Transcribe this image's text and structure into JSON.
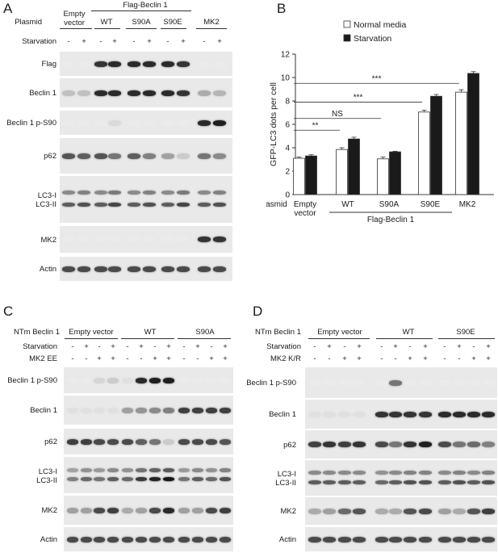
{
  "figure": {
    "panel_letters": [
      "A",
      "B",
      "C",
      "D"
    ]
  },
  "panelA": {
    "header_group": "Flag-Beclin 1",
    "col_groups": [
      "Empty\nvector",
      "WT",
      "S90A",
      "S90E",
      "MK2"
    ],
    "row_plasmid": "Plasmid",
    "row_starvation": "Starvation",
    "starvation": [
      "-",
      "+",
      "-",
      "+",
      "-",
      "+",
      "-",
      "+",
      "-",
      "+"
    ],
    "blots": [
      {
        "label": "Flag",
        "lanes": [
          0,
          0,
          0.85,
          0.9,
          0.9,
          0.9,
          0.9,
          0.85,
          0,
          0
        ]
      },
      {
        "label": "Beclin 1",
        "lanes": [
          0.2,
          0.2,
          0.9,
          0.9,
          0.9,
          0.9,
          0.9,
          0.85,
          0.3,
          0.25
        ]
      },
      {
        "label": "Beclin 1 p-S90",
        "lanes": [
          0,
          0,
          0,
          0.08,
          0,
          0,
          0,
          0,
          0.9,
          0.95
        ]
      },
      {
        "label": "p62",
        "lanes": [
          0.7,
          0.65,
          0.7,
          0.55,
          0.65,
          0.5,
          0.35,
          0.15,
          0.55,
          0.45
        ]
      },
      {
        "label": "LC3-I\nLC3-II",
        "lanes": [
          0.6,
          0.65,
          0.6,
          0.7,
          0.6,
          0.65,
          0.6,
          0.7,
          0.6,
          0.65
        ]
      },
      {
        "label": "MK2",
        "lanes": [
          0,
          0,
          0,
          0,
          0,
          0,
          0,
          0,
          0.85,
          0.85
        ]
      },
      {
        "label": "Actin",
        "lanes": [
          0.75,
          0.75,
          0.75,
          0.75,
          0.75,
          0.75,
          0.75,
          0.75,
          0.75,
          0.75
        ]
      }
    ]
  },
  "panelC": {
    "row_group": "NTm Beclin 1",
    "col_groups": [
      "Empty vector",
      "WT",
      "S90A"
    ],
    "row_starvation": "Starvation",
    "row_treatment": "MK2 EE",
    "starvation": [
      "-",
      "+",
      "-",
      "+",
      "-",
      "+",
      "-",
      "+",
      "-",
      "+",
      "-",
      "+"
    ],
    "treatment": [
      "-",
      "-",
      "+",
      "+",
      "-",
      "-",
      "+",
      "+",
      "-",
      "-",
      "+",
      "+"
    ],
    "blots": [
      {
        "label": "Beclin 1 p-S90",
        "lanes": [
          0,
          0,
          0.1,
          0.15,
          0.05,
          0.9,
          0.95,
          0.95,
          0,
          0,
          0,
          0
        ]
      },
      {
        "label": "Beclin 1",
        "lanes": [
          0.05,
          0.05,
          0.05,
          0.05,
          0.35,
          0.4,
          0.45,
          0.5,
          0.8,
          0.8,
          0.8,
          0.8
        ]
      },
      {
        "label": "p62",
        "lanes": [
          0.8,
          0.8,
          0.75,
          0.75,
          0.75,
          0.65,
          0.55,
          0.15,
          0.75,
          0.75,
          0.75,
          0.7
        ]
      },
      {
        "label": "LC3-I\nLC3-II",
        "lanes": [
          0.45,
          0.55,
          0.5,
          0.6,
          0.55,
          0.75,
          0.85,
          0.9,
          0.5,
          0.6,
          0.55,
          0.65
        ]
      },
      {
        "label": "MK2",
        "lanes": [
          0.35,
          0.35,
          0.75,
          0.8,
          0.3,
          0.35,
          0.75,
          0.9,
          0.35,
          0.35,
          0.75,
          0.8
        ]
      },
      {
        "label": "Actin",
        "lanes": [
          0.75,
          0.75,
          0.75,
          0.75,
          0.75,
          0.75,
          0.75,
          0.75,
          0.75,
          0.75,
          0.75,
          0.75
        ]
      }
    ]
  },
  "panelD": {
    "row_group": "NTm Beclin 1",
    "col_groups": [
      "Empty vector",
      "WT",
      "S90E"
    ],
    "row_starvation": "Starvation",
    "row_treatment": "MK2 K/R",
    "starvation": [
      "-",
      "+",
      "-",
      "+",
      "-",
      "+",
      "-",
      "+",
      "-",
      "+",
      "-",
      "+"
    ],
    "treatment": [
      "-",
      "-",
      "+",
      "+",
      "-",
      "-",
      "+",
      "+",
      "-",
      "-",
      "+",
      "+"
    ],
    "blots": [
      {
        "label": "Beclin 1 p-S90",
        "lanes": [
          0,
          0,
          0,
          0,
          0,
          0.55,
          0,
          0,
          0,
          0,
          0,
          0
        ]
      },
      {
        "label": "Beclin 1",
        "lanes": [
          0.05,
          0.05,
          0.05,
          0.05,
          0.85,
          0.85,
          0.85,
          0.85,
          0.9,
          0.9,
          0.9,
          0.9
        ]
      },
      {
        "label": "p62",
        "lanes": [
          0.8,
          0.85,
          0.8,
          0.85,
          0.75,
          0.55,
          0.85,
          0.95,
          0.75,
          0.55,
          0.6,
          0.5
        ]
      },
      {
        "label": "LC3-I\nLC3-II",
        "lanes": [
          0.6,
          0.6,
          0.6,
          0.6,
          0.55,
          0.6,
          0.65,
          0.65,
          0.6,
          0.65,
          0.6,
          0.65
        ]
      },
      {
        "label": "MK2",
        "lanes": [
          0.3,
          0.35,
          0.6,
          0.7,
          0.3,
          0.3,
          0.7,
          0.75,
          0.35,
          0.3,
          0.7,
          0.8
        ]
      },
      {
        "label": "Actin",
        "lanes": [
          0.75,
          0.75,
          0.75,
          0.75,
          0.75,
          0.75,
          0.75,
          0.75,
          0.75,
          0.75,
          0.75,
          0.75
        ]
      }
    ]
  },
  "chart_data": {
    "type": "bar",
    "ylabel": "GFP-LC3 dots per cell",
    "row_label": "Plasmid",
    "group_label": "Flag-Beclin 1",
    "categories": [
      "Empty\nvector",
      "WT",
      "S90A",
      "S90E",
      "MK2"
    ],
    "ylim": [
      0,
      12
    ],
    "yticks": [
      "0",
      "2",
      "4",
      "6",
      "8",
      "10",
      "12"
    ],
    "legend_position": "top-right",
    "series": [
      {
        "name": "Normal media",
        "color": "#ffffff",
        "values": [
          3.1,
          3.85,
          3.05,
          7.05,
          8.75
        ],
        "errors": [
          0.1,
          0.15,
          0.15,
          0.15,
          0.2
        ]
      },
      {
        "name": "Starvation",
        "color": "#1a1a1a",
        "values": [
          3.3,
          4.75,
          3.65,
          8.4,
          10.35
        ],
        "errors": [
          0.1,
          0.15,
          0.05,
          0.15,
          0.15
        ]
      }
    ],
    "significance": [
      {
        "from": 0,
        "to": 1,
        "y": 5.5,
        "text": "**"
      },
      {
        "from": 0,
        "to": 2,
        "y": 6.5,
        "text": "NS"
      },
      {
        "from": 0,
        "to": 3,
        "y": 7.9,
        "text": "***"
      },
      {
        "from": 0,
        "to": 4,
        "y": 9.5,
        "text": "***"
      }
    ]
  }
}
